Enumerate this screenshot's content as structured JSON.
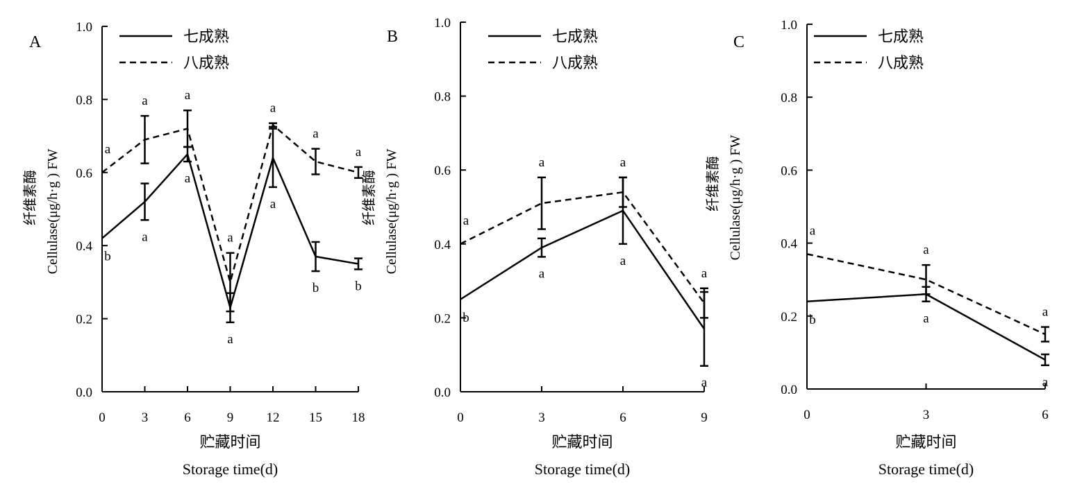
{
  "chart_data": [
    {
      "type": "line",
      "panel": "A",
      "ylabel_cn": "纤维素酶",
      "ylabel": "Cellulase(μg/h·g ) FW",
      "xlabel_cn": "贮藏时间",
      "xlabel": "Storage time(d)",
      "x": [
        0,
        3,
        6,
        9,
        12,
        15,
        18
      ],
      "xlim": [
        0,
        18
      ],
      "ylim": [
        0,
        1.0
      ],
      "yticks": [
        "0.0",
        "0.2",
        "0.4",
        "0.6",
        "0.8",
        "1.0"
      ],
      "xticks": [
        "0",
        "3",
        "6",
        "9",
        "12",
        "15",
        "18"
      ],
      "legend_placement": "top-left",
      "series": [
        {
          "name": "七成熟",
          "style": "solid",
          "values": [
            0.42,
            0.52,
            0.65,
            0.23,
            0.64,
            0.37,
            0.35
          ],
          "errors": [
            0.0,
            0.05,
            0.02,
            0.04,
            0.08,
            0.04,
            0.015
          ],
          "labels": [
            "b",
            "a",
            "a",
            "a",
            "a",
            "b",
            "b"
          ]
        },
        {
          "name": "八成熟",
          "style": "dashed",
          "values": [
            0.6,
            0.69,
            0.72,
            0.3,
            0.73,
            0.63,
            0.6
          ],
          "errors": [
            0.0,
            0.065,
            0.05,
            0.08,
            0.005,
            0.035,
            0.015
          ],
          "labels": [
            "a",
            "a",
            "a",
            "a",
            "a",
            "a",
            "a"
          ]
        }
      ]
    },
    {
      "type": "line",
      "panel": "B",
      "ylabel_cn": "纤维素酶",
      "ylabel": "Cellulase(μg/h·g ) FW",
      "xlabel_cn": "贮藏时间",
      "xlabel": "Storage time(d)",
      "x": [
        0,
        3,
        6,
        9
      ],
      "xlim": [
        0,
        9
      ],
      "ylim": [
        0,
        1.0
      ],
      "yticks": [
        "0.0",
        "0.2",
        "0.4",
        "0.6",
        "0.8",
        "1.0"
      ],
      "xticks": [
        "0",
        "3",
        "6",
        "9"
      ],
      "legend_placement": "top-left",
      "series": [
        {
          "name": "七成熟",
          "style": "solid",
          "values": [
            0.25,
            0.39,
            0.49,
            0.17
          ],
          "errors": [
            0.0,
            0.025,
            0.09,
            0.1
          ],
          "labels": [
            "b",
            "a",
            "a",
            "a"
          ]
        },
        {
          "name": "八成熟",
          "style": "dashed",
          "values": [
            0.4,
            0.51,
            0.54,
            0.24
          ],
          "errors": [
            0.0,
            0.07,
            0.04,
            0.04
          ],
          "labels": [
            "a",
            "a",
            "a",
            "a"
          ]
        }
      ]
    },
    {
      "type": "line",
      "panel": "C",
      "ylabel_cn": "纤维素酶",
      "ylabel": "Cellulase(μg/h·g ) FW",
      "xlabel_cn": "贮藏时间",
      "xlabel": "Storage time(d)",
      "x": [
        0,
        3,
        6
      ],
      "xlim": [
        0,
        6
      ],
      "ylim": [
        0,
        1.0
      ],
      "yticks": [
        "0.0",
        "0.2",
        "0.4",
        "0.6",
        "0.8",
        "1.0"
      ],
      "xticks": [
        "0",
        "3",
        "6"
      ],
      "legend_placement": "top-left",
      "series": [
        {
          "name": "七成熟",
          "style": "solid",
          "values": [
            0.24,
            0.26,
            0.08
          ],
          "errors": [
            0.0,
            0.02,
            0.015
          ],
          "labels": [
            "b",
            "a",
            "a"
          ]
        },
        {
          "name": "八成熟",
          "style": "dashed",
          "values": [
            0.37,
            0.3,
            0.15
          ],
          "errors": [
            0.0,
            0.04,
            0.02
          ],
          "labels": [
            "a",
            "a",
            "a"
          ]
        }
      ]
    }
  ]
}
